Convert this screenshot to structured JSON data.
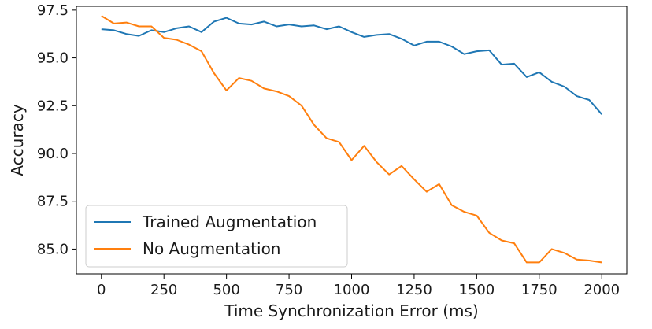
{
  "chart_data": {
    "type": "line",
    "xlabel": "Time Synchronization Error (ms)",
    "ylabel": "Accuracy",
    "xlim": [
      -100,
      2100
    ],
    "ylim": [
      83.7,
      97.7
    ],
    "xticks": [
      0,
      250,
      500,
      750,
      1000,
      1250,
      1500,
      1750,
      2000
    ],
    "yticks": [
      85.0,
      87.5,
      90.0,
      92.5,
      95.0,
      97.5
    ],
    "grid": false,
    "legend_position": "lower-left",
    "x": [
      0,
      50,
      100,
      150,
      200,
      250,
      300,
      350,
      400,
      450,
      500,
      550,
      600,
      650,
      700,
      750,
      800,
      850,
      900,
      950,
      1000,
      1050,
      1100,
      1150,
      1200,
      1250,
      1300,
      1350,
      1400,
      1450,
      1500,
      1550,
      1600,
      1650,
      1700,
      1750,
      1800,
      1850,
      1900,
      1950,
      2000
    ],
    "series": [
      {
        "name": "Trained Augmentation",
        "color": "#1f77b4",
        "values": [
          96.5,
          96.45,
          96.25,
          96.15,
          96.45,
          96.35,
          96.55,
          96.65,
          96.35,
          96.9,
          97.1,
          96.8,
          96.75,
          96.9,
          96.65,
          96.75,
          96.65,
          96.7,
          96.5,
          96.65,
          96.35,
          96.1,
          96.2,
          96.25,
          96.0,
          95.65,
          95.85,
          95.85,
          95.6,
          95.2,
          95.35,
          95.4,
          94.65,
          94.7,
          94.0,
          94.25,
          93.75,
          93.5,
          93.0,
          92.8,
          92.05
        ]
      },
      {
        "name": "No Augmentation",
        "color": "#ff7f0e",
        "values": [
          97.2,
          96.8,
          96.85,
          96.65,
          96.65,
          96.05,
          95.95,
          95.7,
          95.35,
          94.2,
          93.3,
          93.95,
          93.8,
          93.4,
          93.25,
          93.0,
          92.5,
          91.5,
          90.8,
          90.6,
          89.65,
          90.4,
          89.55,
          88.9,
          89.35,
          88.65,
          88.0,
          88.4,
          87.3,
          86.95,
          86.75,
          85.85,
          85.45,
          85.3,
          84.3,
          84.3,
          85.0,
          84.8,
          84.45,
          84.4,
          84.3
        ]
      }
    ]
  }
}
